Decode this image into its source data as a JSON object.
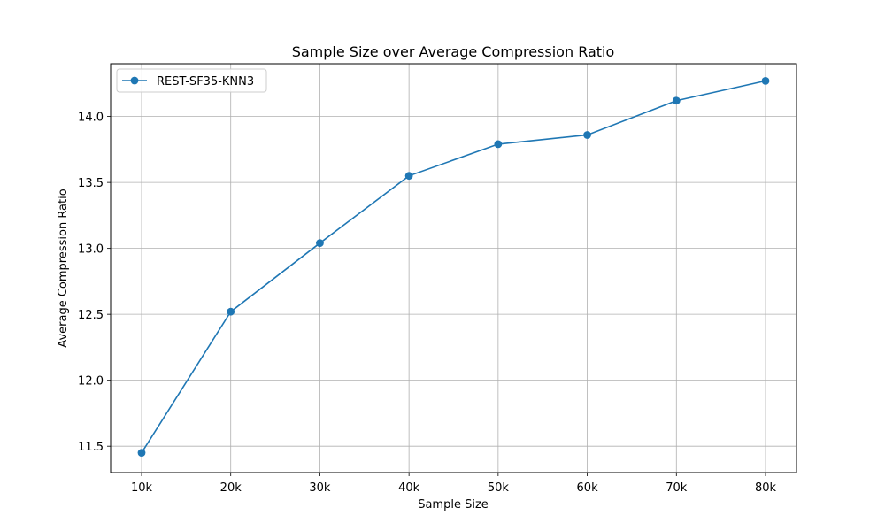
{
  "chart_data": {
    "type": "line",
    "title": "Sample Size over Average Compression Ratio",
    "xlabel": "Sample Size",
    "ylabel": "Average Compression Ratio",
    "categories": [
      "10k",
      "20k",
      "30k",
      "40k",
      "50k",
      "60k",
      "70k",
      "80k"
    ],
    "series": [
      {
        "name": "REST-SF35-KNN3",
        "color": "#1f77b4",
        "marker": "circle",
        "values": [
          11.45,
          12.52,
          13.04,
          13.55,
          13.79,
          13.86,
          14.12,
          14.27
        ]
      }
    ],
    "yticks": [
      11.5,
      12.0,
      12.5,
      13.0,
      13.5,
      14.0
    ],
    "ytick_labels": [
      "11.5",
      "12.0",
      "12.5",
      "13.0",
      "13.5",
      "14.0"
    ],
    "ylim": [
      11.3,
      14.4
    ],
    "grid": true,
    "legend_position": "top-left"
  }
}
